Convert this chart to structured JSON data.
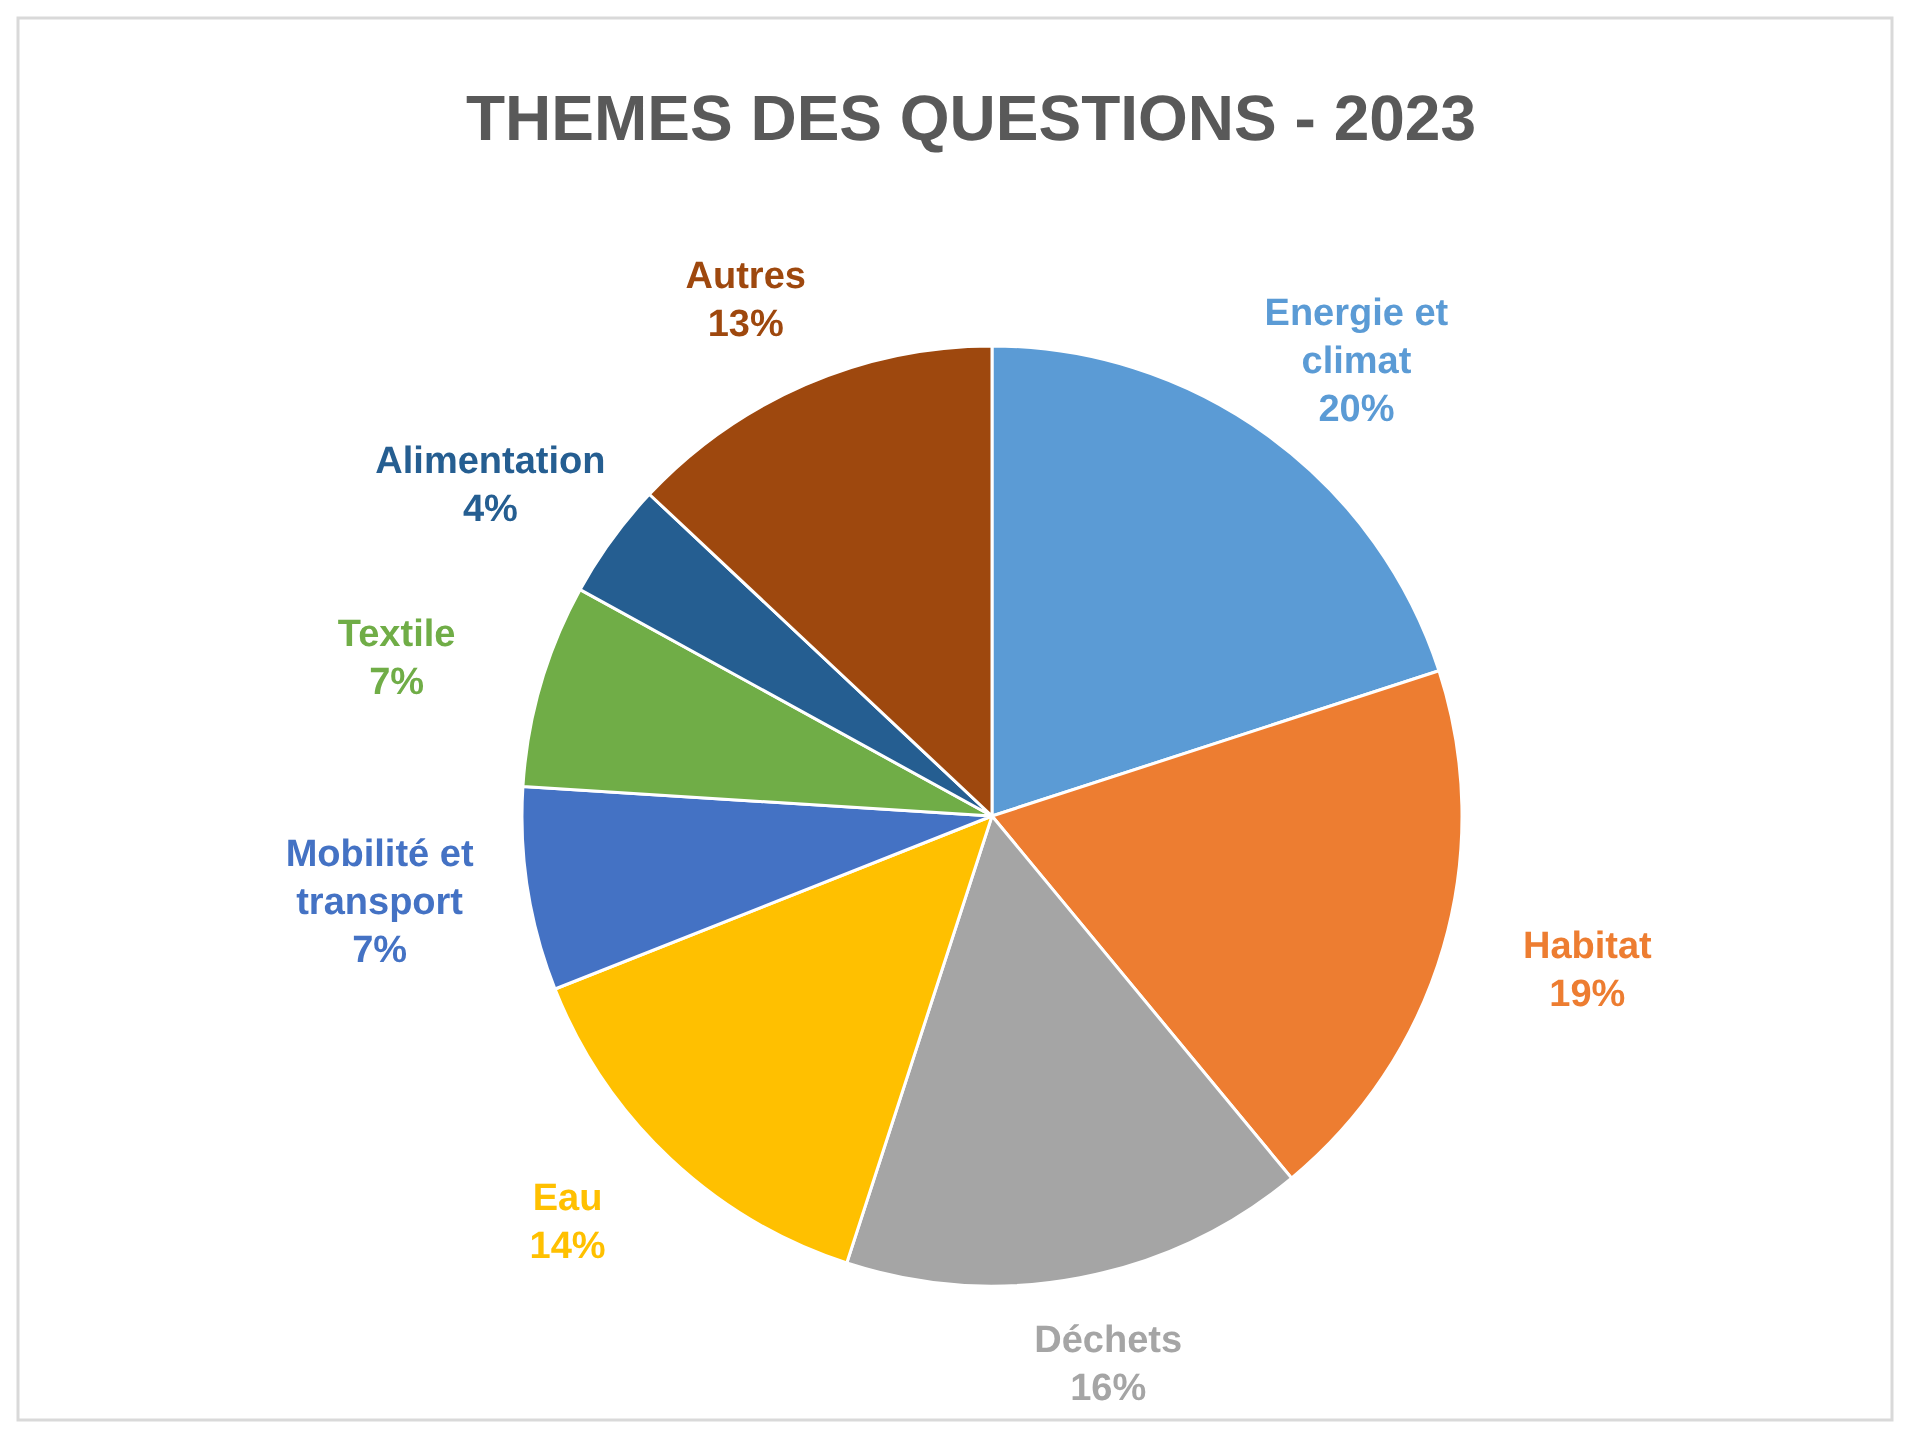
{
  "chart_data": {
    "type": "pie",
    "title": "THEMES DES QUESTIONS - 2023",
    "categories": [
      "Energie et climat",
      "Habitat",
      "Déchets",
      "Eau",
      "Mobilité et transport",
      "Textile",
      "Alimentation",
      "Autres"
    ],
    "values": [
      20,
      19,
      16,
      14,
      7,
      7,
      4,
      13
    ],
    "colors": [
      "#5b9bd5",
      "#ed7d31",
      "#a5a5a5",
      "#ffc000",
      "#4472c4",
      "#70ad47",
      "#255e91",
      "#9e480e"
    ],
    "value_labels": [
      "20%",
      "19%",
      "16%",
      "14%",
      "7%",
      "7%",
      "4%",
      "13%"
    ]
  }
}
